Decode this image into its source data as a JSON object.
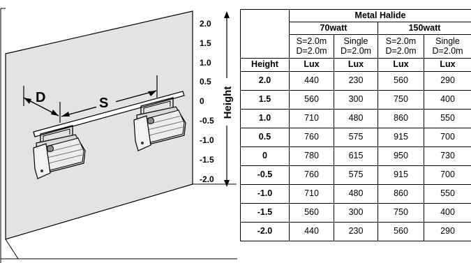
{
  "diagram": {
    "label_d": "D",
    "label_s": "S",
    "axis_title": "Height",
    "height_ticks": [
      "2.0",
      "1.5",
      "1.0",
      "0.5",
      "0",
      "-0.5",
      "-1.0",
      "-1.5",
      "-2.0"
    ]
  },
  "table": {
    "lamp_type": "Metal Halide",
    "wattages": [
      "70watt",
      "150watt"
    ],
    "configs": [
      [
        "S=2.0m",
        "D=2.0m"
      ],
      [
        "Single",
        "D=2.0m"
      ],
      [
        "S=2.0m",
        "D=2.0m"
      ],
      [
        "Single",
        "D=2.0m"
      ]
    ],
    "height_header": "Height",
    "unit_headers": [
      "Lux",
      "Lux",
      "Lux",
      "Lux"
    ],
    "rows": [
      {
        "height": "2.0",
        "values": [
          "440",
          "230",
          "560",
          "290"
        ]
      },
      {
        "height": "1.5",
        "values": [
          "560",
          "300",
          "750",
          "400"
        ]
      },
      {
        "height": "1.0",
        "values": [
          "710",
          "480",
          "860",
          "550"
        ]
      },
      {
        "height": "0.5",
        "values": [
          "760",
          "575",
          "915",
          "700"
        ]
      },
      {
        "height": "0",
        "values": [
          "780",
          "615",
          "950",
          "730"
        ]
      },
      {
        "height": "-0.5",
        "values": [
          "760",
          "575",
          "915",
          "700"
        ]
      },
      {
        "height": "-1.0",
        "values": [
          "710",
          "480",
          "860",
          "550"
        ]
      },
      {
        "height": "-1.5",
        "values": [
          "560",
          "300",
          "750",
          "400"
        ]
      },
      {
        "height": "-2.0",
        "values": [
          "440",
          "230",
          "560",
          "290"
        ]
      }
    ]
  },
  "colors": {
    "wall": "#e3e3e3",
    "wall_shade": "#cfcfcf",
    "fixture": "#d8d8d8",
    "fixture_dark": "#8a8a8a"
  }
}
